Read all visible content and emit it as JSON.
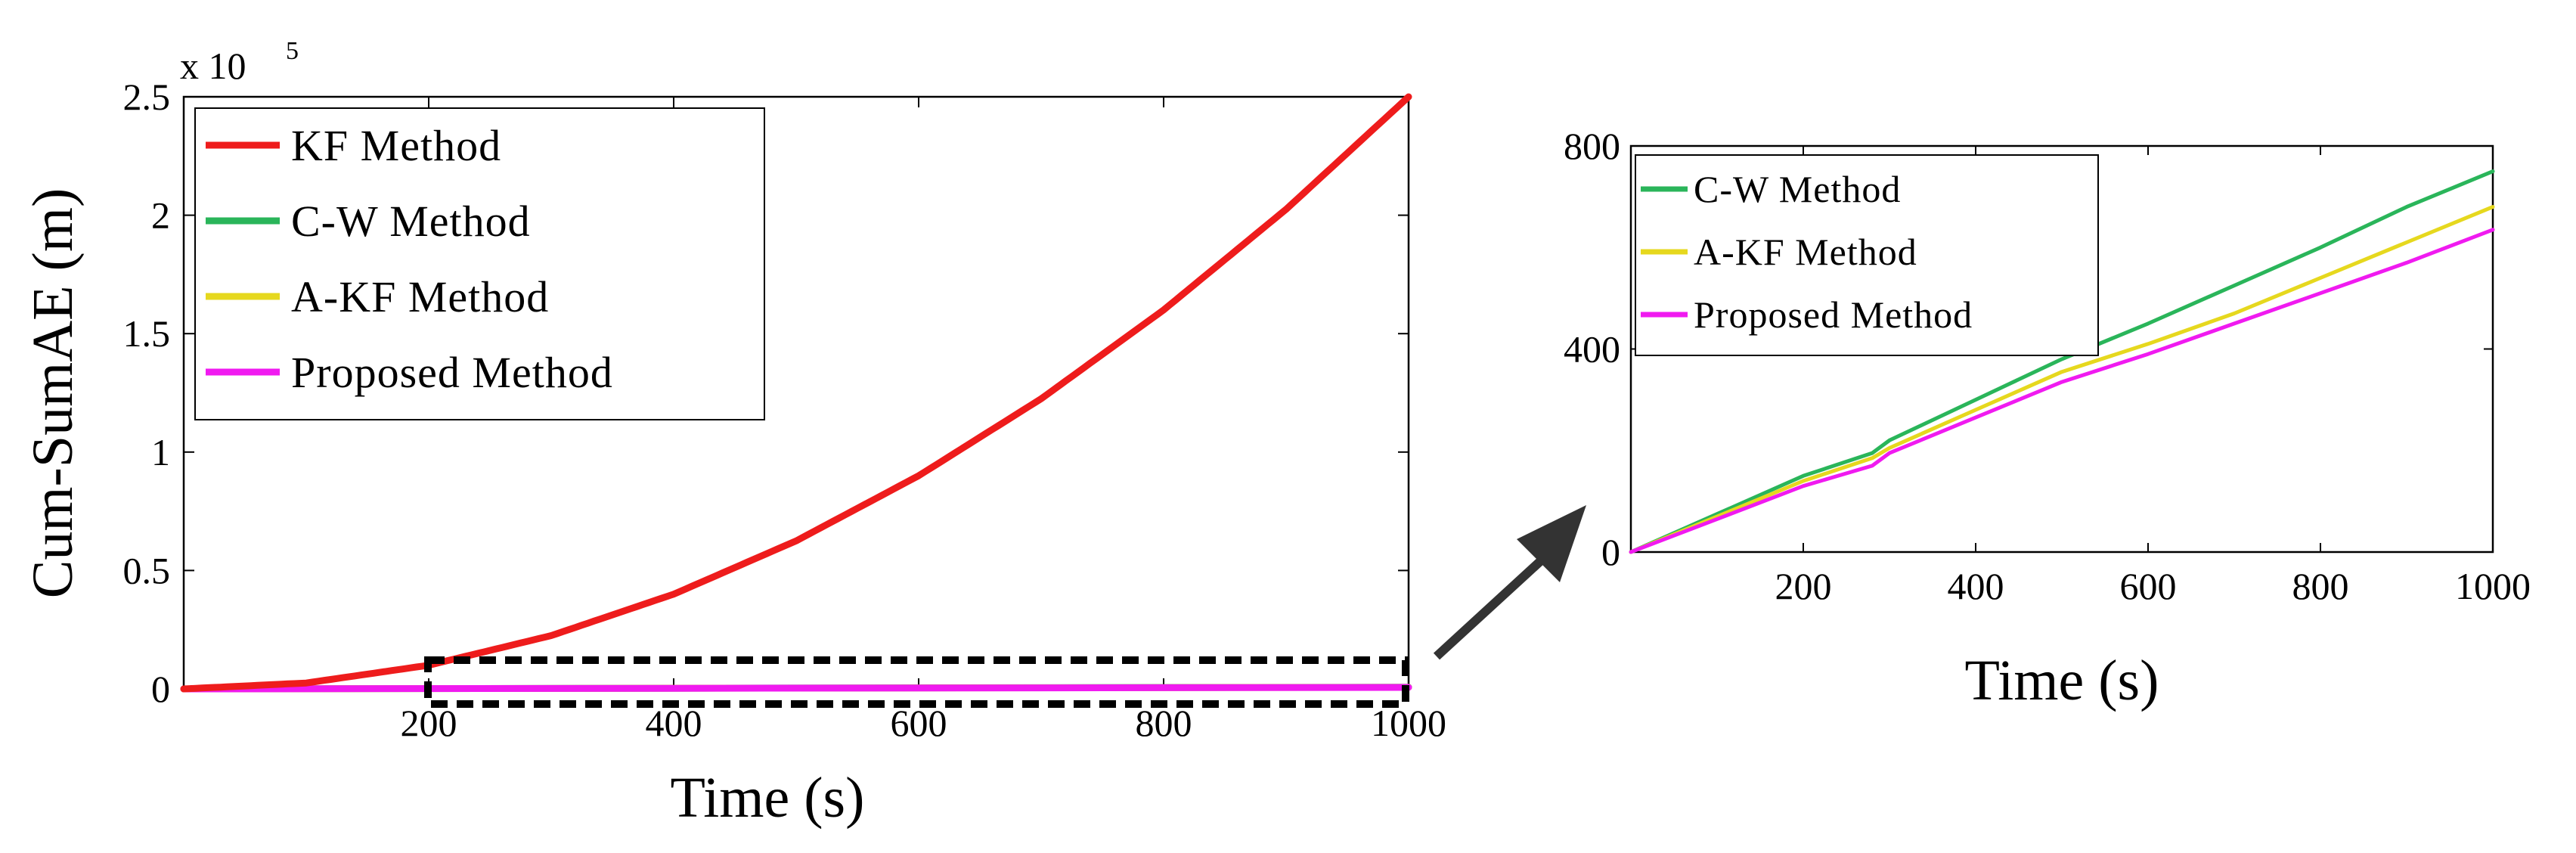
{
  "chart_data": [
    {
      "type": "line",
      "xlabel": "Time (s)",
      "ylabel": "Cum-SumAE (m)",
      "y_multiplier": "x 10",
      "y_multiplier_exp": "5",
      "xlim": [
        0,
        1000
      ],
      "ylim": [
        0,
        2.5
      ],
      "xticks": [
        "200",
        "400",
        "600",
        "800",
        "1000"
      ],
      "yticks": [
        "0",
        "0.5",
        "1",
        "1.5",
        "2",
        "2.5"
      ],
      "xtick_values": [
        200,
        400,
        600,
        800,
        1000
      ],
      "ytick_values": [
        0,
        0.5,
        1,
        1.5,
        2,
        2.5
      ],
      "legend_position": "top-left",
      "grid": false,
      "series": [
        {
          "name": "KF Method",
          "color": "#ee1c1c",
          "x": [
            0,
            100,
            200,
            300,
            400,
            500,
            600,
            700,
            800,
            900,
            1000
          ],
          "y": [
            0,
            0.025,
            0.1,
            0.225,
            0.4,
            0.625,
            0.9,
            1.225,
            1.6,
            2.025,
            2.5
          ]
        },
        {
          "name": "C-W Method",
          "color": "#2ab55a",
          "x": [
            0,
            1000
          ],
          "y": [
            0,
            0.0075
          ]
        },
        {
          "name": "A-KF Method",
          "color": "#e6d81e",
          "x": [
            0,
            1000
          ],
          "y": [
            0,
            0.0068
          ]
        },
        {
          "name": "Proposed Method",
          "color": "#f01af0",
          "x": [
            0,
            1000
          ],
          "y": [
            0,
            0.0063
          ]
        }
      ],
      "annotations": [
        "dashed zoom box from x=200 to x=1000",
        "arrow pointing to zoomed inset"
      ]
    },
    {
      "type": "line",
      "xlabel": "Time (s)",
      "ylabel": "",
      "xlim": [
        0,
        1000
      ],
      "ylim": [
        0,
        800
      ],
      "xticks": [
        "200",
        "400",
        "600",
        "800",
        "1000"
      ],
      "yticks": [
        "0",
        "400",
        "800"
      ],
      "xtick_values": [
        200,
        400,
        600,
        800,
        1000
      ],
      "ytick_values": [
        0,
        400,
        800
      ],
      "legend_position": "top-left",
      "grid": false,
      "series": [
        {
          "name": "C-W Method",
          "color": "#2ab55a",
          "x": [
            0,
            100,
            200,
            280,
            300,
            400,
            500,
            600,
            700,
            800,
            900,
            1000
          ],
          "y": [
            0,
            75,
            150,
            195,
            220,
            300,
            380,
            450,
            525,
            600,
            680,
            750
          ]
        },
        {
          "name": "A-KF Method",
          "color": "#e6d81e",
          "x": [
            0,
            100,
            200,
            280,
            300,
            400,
            500,
            600,
            700,
            800,
            900,
            1000
          ],
          "y": [
            0,
            70,
            140,
            185,
            205,
            280,
            355,
            410,
            470,
            540,
            610,
            680
          ]
        },
        {
          "name": "Proposed Method",
          "color": "#f01af0",
          "x": [
            0,
            100,
            200,
            280,
            300,
            400,
            500,
            600,
            700,
            800,
            900,
            1000
          ],
          "y": [
            0,
            65,
            130,
            170,
            195,
            265,
            335,
            390,
            450,
            510,
            570,
            635
          ]
        }
      ]
    }
  ]
}
